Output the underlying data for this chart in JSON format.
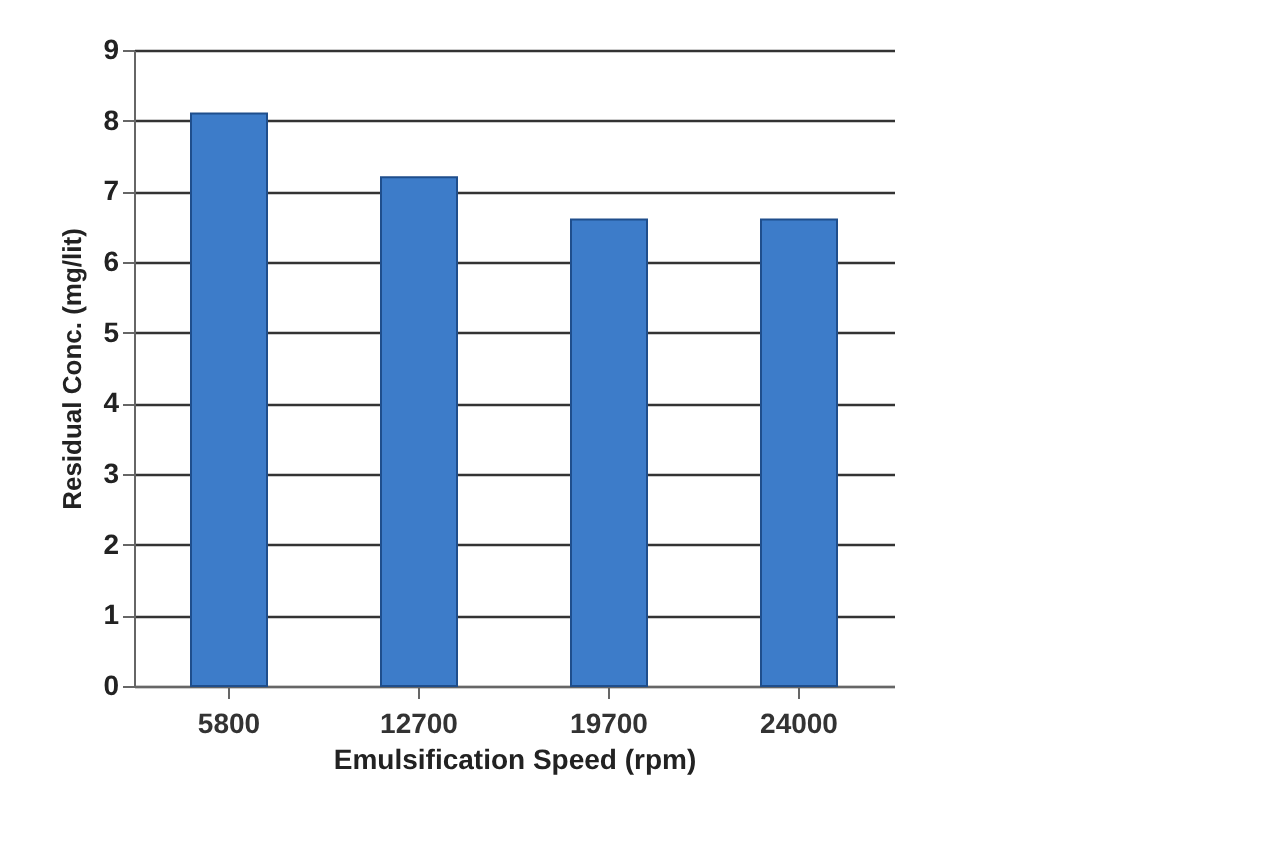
{
  "chart_data": {
    "type": "bar",
    "xlabel": "Emulsification  Speed (rpm)",
    "ylabel": "Residual Conc. (mg/lit)",
    "categories": [
      "5800",
      "12700",
      "19700",
      "24000"
    ],
    "values": [
      8.1,
      7.2,
      6.6,
      6.6
    ],
    "color": "#3d7cc9",
    "ylim": [
      0,
      9
    ],
    "yticks": [
      0,
      1,
      2,
      3,
      4,
      5,
      6,
      7,
      8,
      9
    ],
    "grid": "y"
  }
}
